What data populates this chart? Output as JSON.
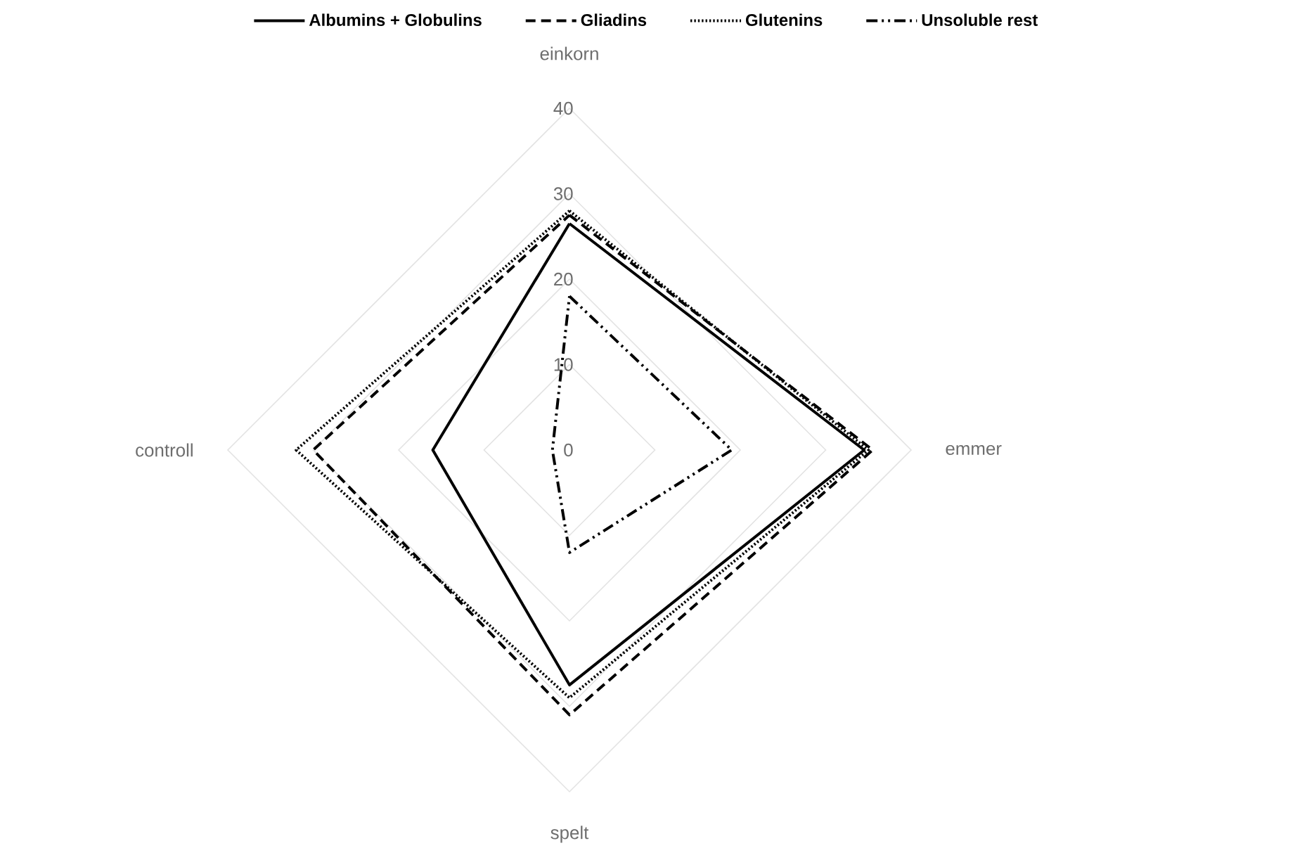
{
  "chart_data": {
    "type": "radar",
    "categories": [
      "einkorn",
      "emmer",
      "spelt",
      "controll"
    ],
    "series": [
      {
        "name": "Albumins + Globulins",
        "color": "#000000",
        "line_style": "solid",
        "values": [
          26.5,
          34.5,
          27.5,
          16
        ]
      },
      {
        "name": "Gliadins",
        "color": "#000000",
        "line_style": "dashed",
        "values": [
          27.5,
          35.5,
          31,
          30
        ]
      },
      {
        "name": "Glutenins",
        "color": "#000000",
        "line_style": "dotted",
        "values": [
          28,
          35,
          29,
          32
        ]
      },
      {
        "name": "Unsoluble rest",
        "color": "#000000",
        "line_style": "dashdotted",
        "values": [
          18,
          19,
          12,
          2
        ]
      }
    ],
    "ylim": [
      0,
      40
    ],
    "yticks": [
      0,
      10,
      20,
      30,
      40
    ],
    "grid": true,
    "legend": "top",
    "marker": "none"
  }
}
